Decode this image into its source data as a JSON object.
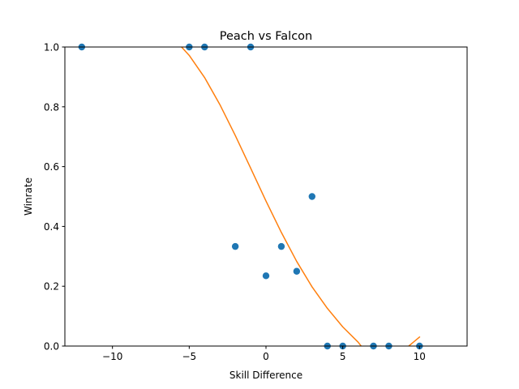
{
  "chart_data": {
    "type": "scatter",
    "title": "Peach vs Falcon",
    "xlabel": "Skill Difference",
    "ylabel": "Winrate",
    "xlim": [
      -13.1,
      13.1
    ],
    "ylim": [
      0,
      1
    ],
    "x_ticks": [
      -10,
      -5,
      0,
      5,
      10
    ],
    "x_tick_labels": [
      "−10",
      "−5",
      "0",
      "5",
      "10"
    ],
    "y_ticks": [
      0,
      0.2,
      0.4,
      0.6,
      0.8,
      1.0
    ],
    "y_tick_labels": [
      "0.0",
      "0.2",
      "0.4",
      "0.6",
      "0.8",
      "1.0"
    ],
    "grid": false,
    "legend": "none",
    "colors": {
      "points": "#1f77b4",
      "fit": "#ff7f0e"
    },
    "series": [
      {
        "kind": "scatter",
        "points": [
          {
            "x": -12,
            "y": 1.0
          },
          {
            "x": -5,
            "y": 1.0
          },
          {
            "x": -4,
            "y": 1.0
          },
          {
            "x": -1,
            "y": 1.0
          },
          {
            "x": -2,
            "y": 0.333
          },
          {
            "x": 0,
            "y": 0.235
          },
          {
            "x": 1,
            "y": 0.333
          },
          {
            "x": 2,
            "y": 0.25
          },
          {
            "x": 3,
            "y": 0.5
          },
          {
            "x": 4,
            "y": 0.0
          },
          {
            "x": 5,
            "y": 0.0
          },
          {
            "x": 7,
            "y": 0.0
          },
          {
            "x": 8,
            "y": 0.0
          },
          {
            "x": 10,
            "y": 0.0
          }
        ]
      },
      {
        "kind": "line",
        "points": [
          {
            "x": -5.5,
            "y": 1.0
          },
          {
            "x": -5,
            "y": 0.972
          },
          {
            "x": -4,
            "y": 0.898
          },
          {
            "x": -3,
            "y": 0.807
          },
          {
            "x": -2,
            "y": 0.704
          },
          {
            "x": -1,
            "y": 0.595
          },
          {
            "x": 0,
            "y": 0.485
          },
          {
            "x": 1,
            "y": 0.38
          },
          {
            "x": 2,
            "y": 0.283
          },
          {
            "x": 3,
            "y": 0.198
          },
          {
            "x": 4,
            "y": 0.126
          },
          {
            "x": 5,
            "y": 0.064
          },
          {
            "x": 6,
            "y": 0.013
          },
          {
            "x": 6.2,
            "y": 0.0
          }
        ]
      },
      {
        "kind": "line",
        "points": [
          {
            "x": 9.3,
            "y": 0.0
          },
          {
            "x": 10,
            "y": 0.03
          }
        ]
      }
    ]
  }
}
